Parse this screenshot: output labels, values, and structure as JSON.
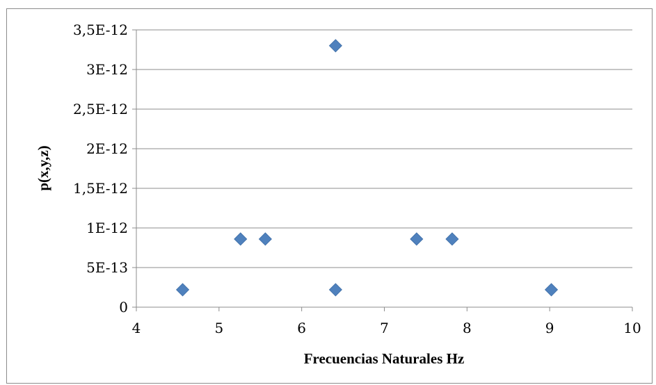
{
  "chart_data": {
    "type": "scatter",
    "title": "",
    "xlabel": "Frecuencias Naturales Hz",
    "ylabel": "p(x,y,z)",
    "xlim": [
      4,
      10
    ],
    "ylim": [
      0,
      3.5e-12
    ],
    "x_ticks": [
      4,
      5,
      6,
      7,
      8,
      9,
      10
    ],
    "x_tick_labels": [
      "4",
      "5",
      "6",
      "7",
      "8",
      "9",
      "10"
    ],
    "y_ticks": [
      0,
      5e-13,
      1e-12,
      1.5e-12,
      2e-12,
      2.5e-12,
      3e-12,
      3.5e-12
    ],
    "y_tick_labels": [
      "0",
      "5E-13",
      "1E-12",
      "1,5E-12",
      "2E-12",
      "2,5E-12",
      "3E-12",
      "3,5E-12"
    ],
    "grid": "horizontal",
    "legend": "none",
    "marker": "diamond",
    "series": [
      {
        "color": "#4f81bd",
        "points": [
          {
            "x": 4.56,
            "y": 2.2e-13
          },
          {
            "x": 5.26,
            "y": 8.6e-13
          },
          {
            "x": 5.56,
            "y": 8.6e-13
          },
          {
            "x": 6.41,
            "y": 3.3e-12
          },
          {
            "x": 6.41,
            "y": 2.2e-13
          },
          {
            "x": 7.39,
            "y": 8.6e-13
          },
          {
            "x": 7.82,
            "y": 8.6e-13
          },
          {
            "x": 9.02,
            "y": 2.2e-13
          }
        ]
      }
    ]
  }
}
